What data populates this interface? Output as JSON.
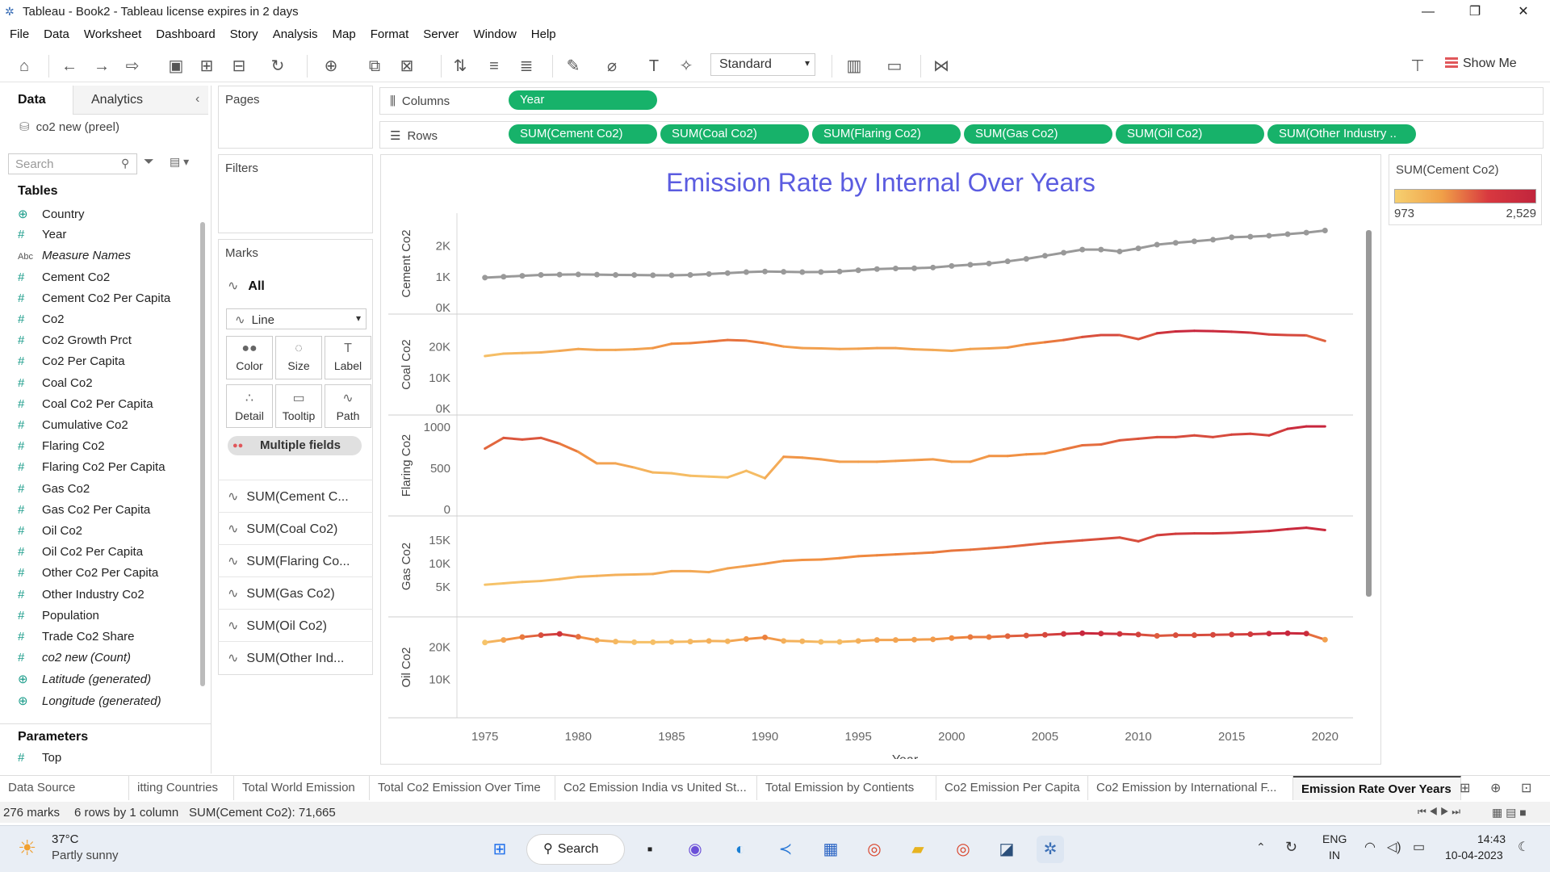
{
  "window": {
    "title": "Tableau - Book2 - Tableau license expires in 2 days"
  },
  "menu": [
    "File",
    "Data",
    "Worksheet",
    "Dashboard",
    "Story",
    "Analysis",
    "Map",
    "Format",
    "Server",
    "Window",
    "Help"
  ],
  "toolbar": {
    "view_mode": "Standard",
    "show_me": "Show Me"
  },
  "data_pane": {
    "tabs": [
      "Data",
      "Analytics"
    ],
    "datasource": "co2 new (preel)",
    "search_placeholder": "Search",
    "tables_header": "Tables",
    "fields": [
      {
        "icon": "globe",
        "name": "Country",
        "italic": false
      },
      {
        "icon": "hash",
        "name": "Year",
        "italic": false
      },
      {
        "icon": "abc",
        "name": "Measure Names",
        "italic": true
      },
      {
        "icon": "hash",
        "name": "Cement Co2",
        "italic": false
      },
      {
        "icon": "hash",
        "name": "Cement Co2 Per Capita",
        "italic": false
      },
      {
        "icon": "hash",
        "name": "Co2",
        "italic": false
      },
      {
        "icon": "hash",
        "name": "Co2 Growth Prct",
        "italic": false
      },
      {
        "icon": "hash",
        "name": "Co2 Per Capita",
        "italic": false
      },
      {
        "icon": "hash",
        "name": "Coal Co2",
        "italic": false
      },
      {
        "icon": "hash",
        "name": "Coal Co2 Per Capita",
        "italic": false
      },
      {
        "icon": "hash",
        "name": "Cumulative Co2",
        "italic": false
      },
      {
        "icon": "hash",
        "name": "Flaring Co2",
        "italic": false
      },
      {
        "icon": "hash",
        "name": "Flaring Co2 Per Capita",
        "italic": false
      },
      {
        "icon": "hash",
        "name": "Gas Co2",
        "italic": false
      },
      {
        "icon": "hash",
        "name": "Gas Co2 Per Capita",
        "italic": false
      },
      {
        "icon": "hash",
        "name": "Oil Co2",
        "italic": false
      },
      {
        "icon": "hash",
        "name": "Oil Co2 Per Capita",
        "italic": false
      },
      {
        "icon": "hash",
        "name": "Other Co2 Per Capita",
        "italic": false
      },
      {
        "icon": "hash",
        "name": "Other Industry Co2",
        "italic": false
      },
      {
        "icon": "hash",
        "name": "Population",
        "italic": false
      },
      {
        "icon": "hash",
        "name": "Trade Co2 Share",
        "italic": false
      },
      {
        "icon": "hash",
        "name": "co2 new (Count)",
        "italic": true
      },
      {
        "icon": "globe",
        "name": "Latitude (generated)",
        "italic": true
      },
      {
        "icon": "globe",
        "name": "Longitude (generated)",
        "italic": true
      }
    ],
    "parameters_header": "Parameters",
    "parameters": [
      {
        "icon": "hash",
        "name": "Top"
      }
    ]
  },
  "cards": {
    "pages": "Pages",
    "filters": "Filters",
    "marks": "Marks",
    "marks_all": "All",
    "mark_type": "Line",
    "mark_buttons": [
      {
        "label": "Color",
        "glyph": "●●"
      },
      {
        "label": "Size",
        "glyph": "◌"
      },
      {
        "label": "Label",
        "glyph": "T"
      },
      {
        "label": "Detail",
        "glyph": "∴"
      },
      {
        "label": "Tooltip",
        "glyph": "▭"
      },
      {
        "label": "Path",
        "glyph": "∿"
      }
    ],
    "multiple_fields": "Multiple fields",
    "mark_measures": [
      "SUM(Cement C...",
      "SUM(Coal Co2)",
      "SUM(Flaring Co...",
      "SUM(Gas Co2)",
      "SUM(Oil Co2)",
      "SUM(Other Ind..."
    ]
  },
  "shelves": {
    "columns_label": "Columns",
    "rows_label": "Rows",
    "columns": [
      "Year"
    ],
    "rows": [
      "SUM(Cement Co2)",
      "SUM(Coal Co2)",
      "SUM(Flaring Co2)",
      "SUM(Gas Co2)",
      "SUM(Oil Co2)",
      "SUM(Other Industry .."
    ]
  },
  "legend": {
    "title": "SUM(Cement Co2)",
    "min": "973",
    "max": "2,529",
    "colors": [
      "#f6d070",
      "#c1253d"
    ]
  },
  "chart_data": {
    "type": "line",
    "title": "Emission Rate by Internal Over Years",
    "xlabel": "Year",
    "x": [
      1975,
      1976,
      1977,
      1978,
      1979,
      1980,
      1981,
      1982,
      1983,
      1984,
      1985,
      1986,
      1987,
      1988,
      1989,
      1990,
      1991,
      1992,
      1993,
      1994,
      1995,
      1996,
      1997,
      1998,
      1999,
      2000,
      2001,
      2002,
      2003,
      2004,
      2005,
      2006,
      2007,
      2008,
      2009,
      2010,
      2011,
      2012,
      2013,
      2014,
      2015,
      2016,
      2017,
      2018,
      2019,
      2020
    ],
    "xticks": [
      1975,
      1980,
      1985,
      1990,
      1995,
      2000,
      2005,
      2010,
      2015,
      2020
    ],
    "panes": [
      {
        "ylabel": "Cement Co2",
        "yticks": [
          {
            "v": 0,
            "t": "0K"
          },
          {
            "v": 1000,
            "t": "1K"
          },
          {
            "v": 2000,
            "t": "2K"
          }
        ],
        "ylim": [
          0,
          2800
        ],
        "markers": true,
        "values": [
          973,
          1000,
          1030,
          1060,
          1070,
          1075,
          1068,
          1060,
          1058,
          1050,
          1048,
          1060,
          1090,
          1120,
          1150,
          1170,
          1160,
          1150,
          1155,
          1170,
          1210,
          1250,
          1270,
          1275,
          1300,
          1350,
          1390,
          1430,
          1500,
          1580,
          1680,
          1780,
          1880,
          1880,
          1820,
          1920,
          2040,
          2100,
          2150,
          2200,
          2280,
          2300,
          2330,
          2380,
          2430,
          2500
        ],
        "colors": "gray"
      },
      {
        "ylabel": "Coal Co2",
        "yticks": [
          {
            "v": 0,
            "t": "0K"
          },
          {
            "v": 10000,
            "t": "10K"
          },
          {
            "v": 20000,
            "t": "20K"
          }
        ],
        "ylim": [
          0,
          28000
        ],
        "markers": false,
        "values": [
          17000,
          17800,
          18000,
          18200,
          18700,
          19300,
          19000,
          19000,
          19200,
          19600,
          21000,
          21200,
          21700,
          22200,
          22000,
          21200,
          20100,
          19600,
          19500,
          19300,
          19400,
          19600,
          19600,
          19200,
          19000,
          18700,
          19300,
          19500,
          19800,
          20800,
          21500,
          22200,
          23200,
          23800,
          23800,
          22500,
          24400,
          25000,
          25200,
          25100,
          24900,
          24600,
          24000,
          23800,
          23700,
          21900
        ],
        "colors": "scale"
      },
      {
        "ylabel": "Flaring Co2",
        "yticks": [
          {
            "v": 0,
            "t": "0"
          },
          {
            "v": 500,
            "t": "500"
          },
          {
            "v": 1000,
            "t": "1000"
          }
        ],
        "ylim": [
          0,
          1050
        ],
        "markers": false,
        "values": [
          740,
          870,
          850,
          870,
          800,
          700,
          560,
          560,
          510,
          450,
          440,
          410,
          400,
          390,
          470,
          380,
          640,
          630,
          610,
          580,
          580,
          580,
          590,
          600,
          610,
          580,
          580,
          650,
          650,
          670,
          680,
          730,
          780,
          790,
          840,
          860,
          880,
          880,
          900,
          880,
          910,
          920,
          900,
          980,
          1010,
          1010
        ],
        "colors": "scale"
      },
      {
        "ylabel": "Gas Co2",
        "yticks": [
          {
            "v": 5000,
            "t": "5K"
          },
          {
            "v": 10000,
            "t": "10K"
          },
          {
            "v": 15000,
            "t": "15K"
          }
        ],
        "ylim": [
          0,
          18500
        ],
        "markers": false,
        "values": [
          5500,
          5800,
          6100,
          6300,
          6700,
          7200,
          7400,
          7600,
          7700,
          7800,
          8400,
          8400,
          8200,
          9000,
          9500,
          10000,
          10600,
          10800,
          10900,
          11200,
          11600,
          11800,
          12000,
          12200,
          12400,
          12800,
          13000,
          13300,
          13600,
          14000,
          14400,
          14700,
          15000,
          15300,
          15600,
          14800,
          16100,
          16400,
          16500,
          16500,
          16600,
          16800,
          17000,
          17400,
          17700,
          17200
        ],
        "colors": "scale"
      },
      {
        "ylabel": "Oil Co2",
        "yticks": [
          {
            "v": 10000,
            "t": "10K"
          },
          {
            "v": 20000,
            "t": "20K"
          }
        ],
        "ylim": [
          0,
          27000
        ],
        "markers": true,
        "values": [
          21500,
          22300,
          23200,
          23800,
          24200,
          23300,
          22200,
          21800,
          21600,
          21600,
          21700,
          21800,
          22000,
          21900,
          22600,
          23100,
          22000,
          21900,
          21700,
          21700,
          22000,
          22300,
          22300,
          22400,
          22500,
          22900,
          23200,
          23200,
          23500,
          23700,
          23900,
          24200,
          24400,
          24300,
          24200,
          24000,
          23600,
          23800,
          23800,
          23900,
          24000,
          24100,
          24300,
          24400,
          24300,
          22400
        ],
        "colors": "scale"
      }
    ]
  },
  "sheet_tabs": [
    "Data Source",
    "itting Countries",
    "Total World Emission",
    "Total Co2 Emission Over Time",
    "Co2 Emission India vs United St...",
    "Total Emission by Contients",
    "Co2 Emission Per Capita",
    "Co2 Emission by International F...",
    "Emission Rate Over Years"
  ],
  "status": {
    "marks": "276 marks",
    "dims": "6 rows by 1 column",
    "sum": "SUM(Cement Co2): 71,665"
  },
  "taskbar": {
    "temp": "37°C",
    "weather": "Partly sunny",
    "search": "Search",
    "lang1": "ENG",
    "lang2": "IN",
    "time": "14:43",
    "date": "10-04-2023"
  }
}
